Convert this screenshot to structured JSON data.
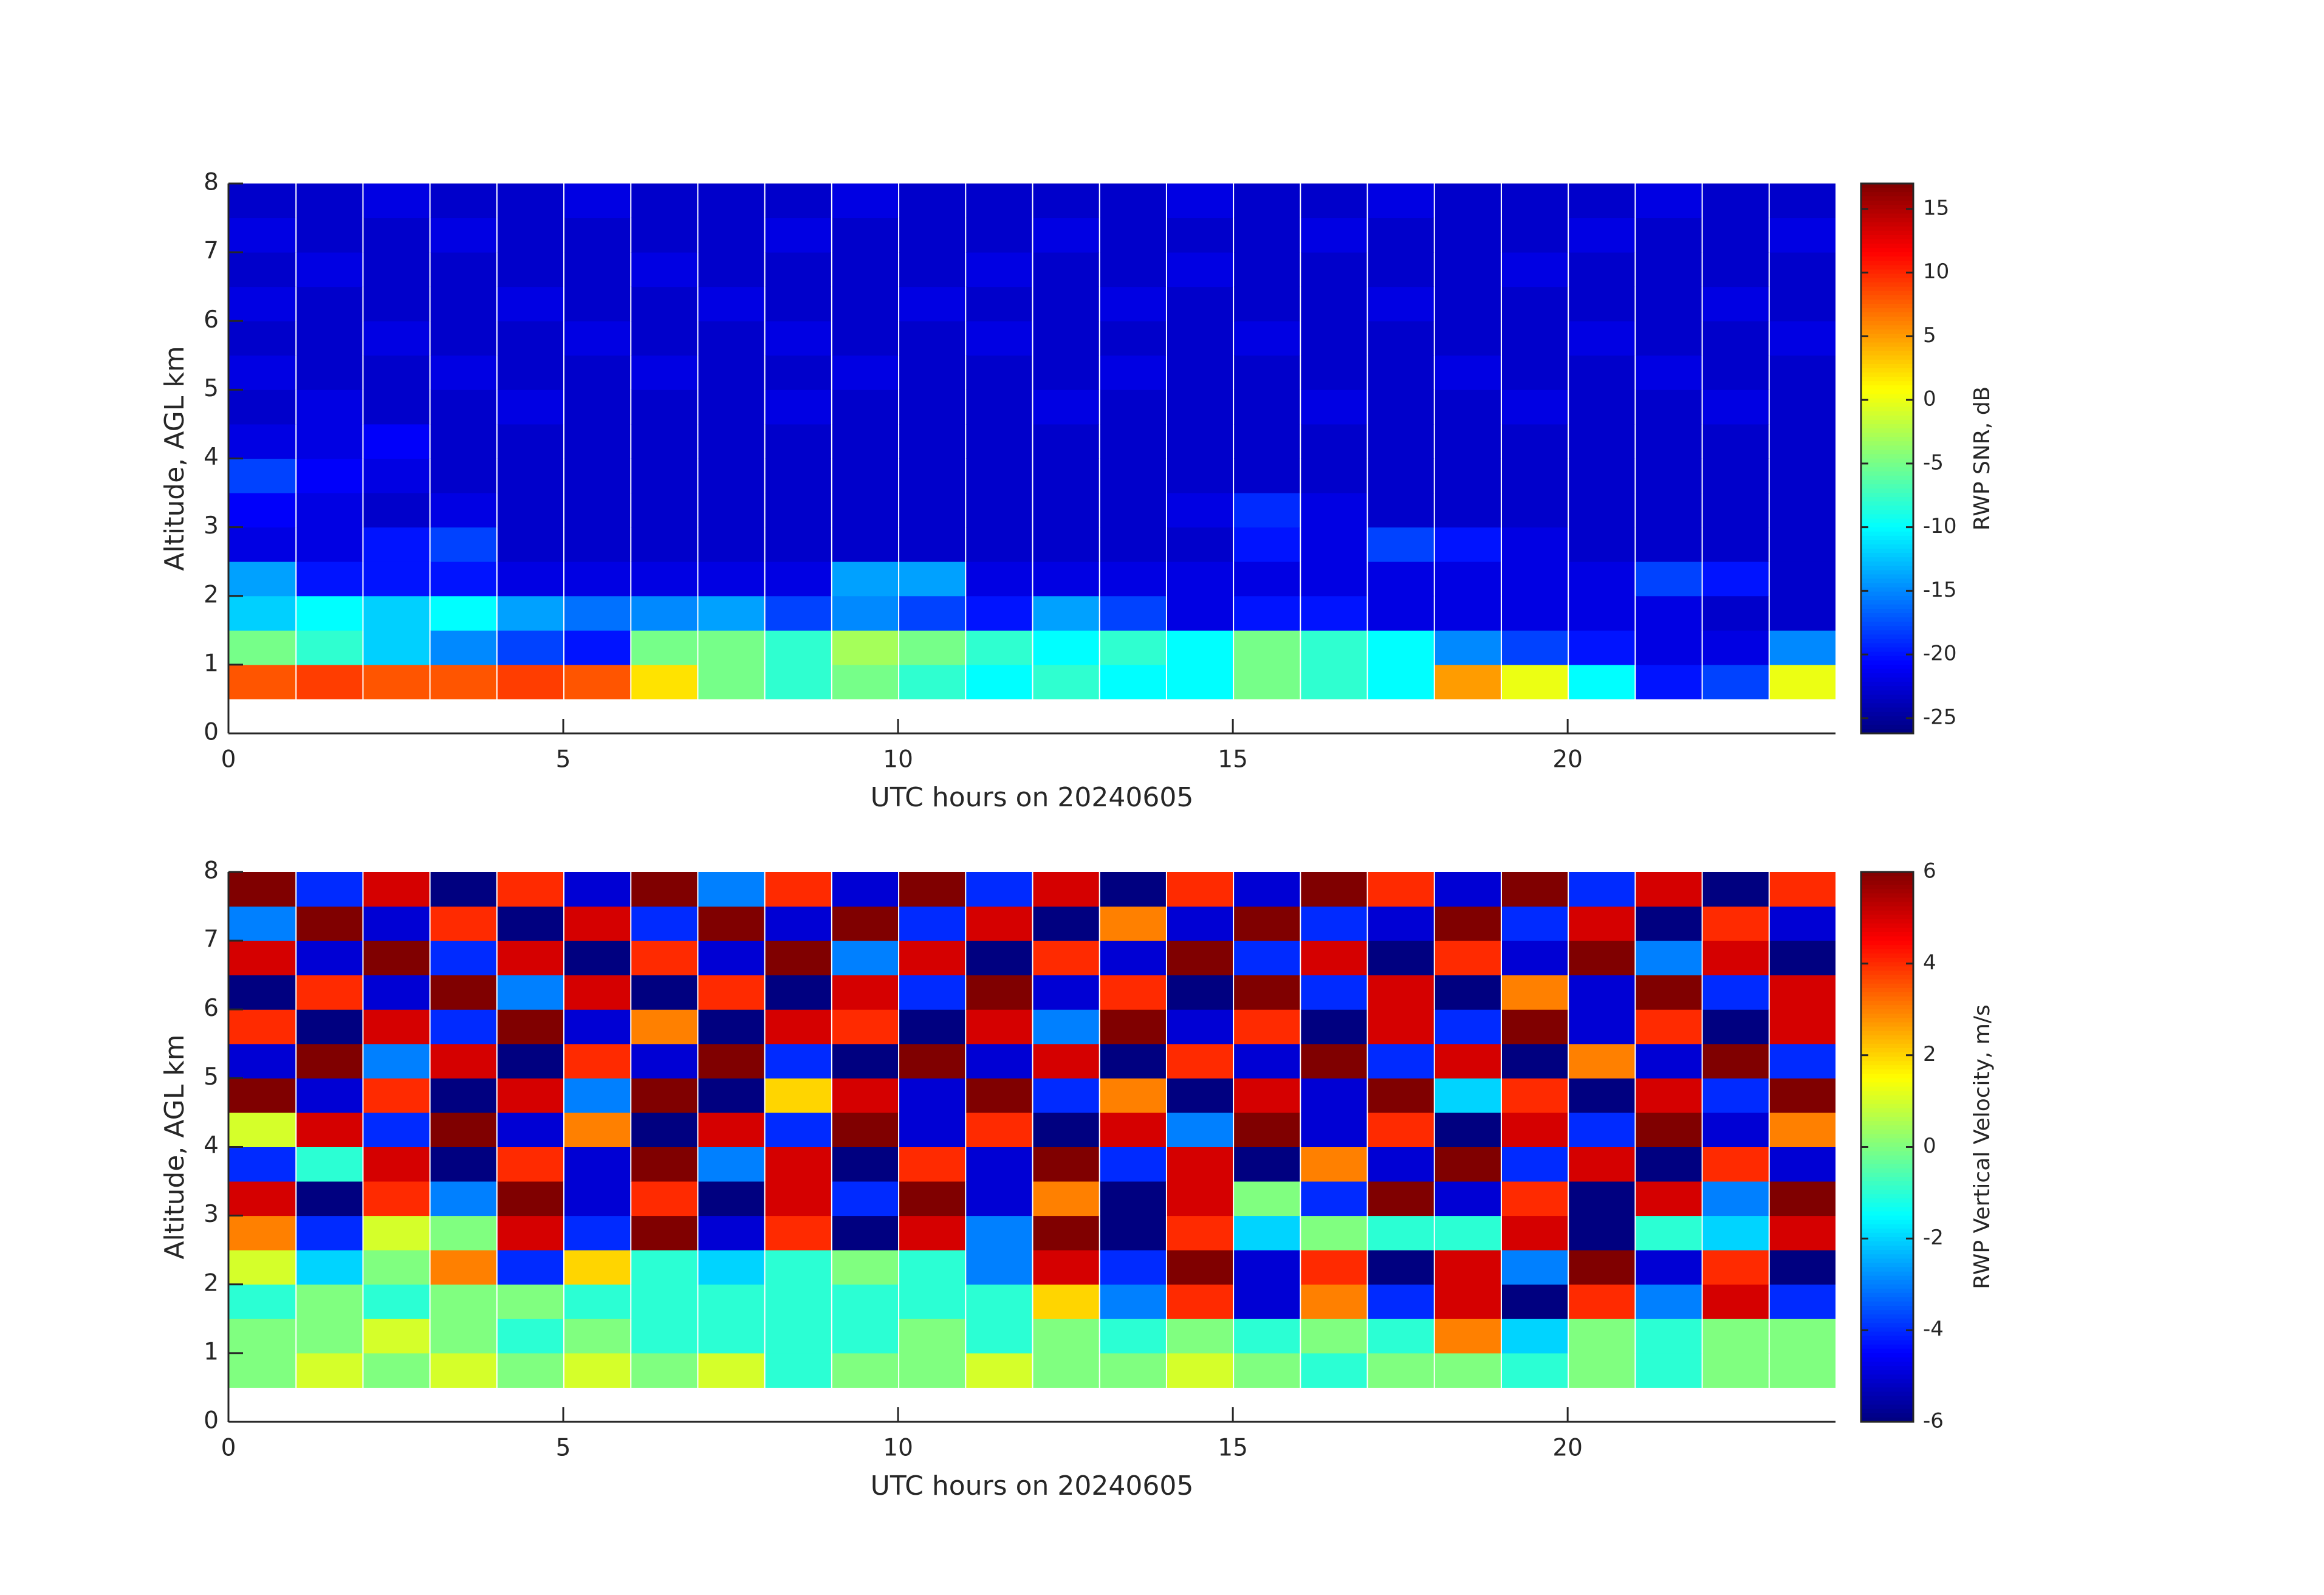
{
  "chart_data": [
    {
      "type": "heatmap",
      "colormap": "jet",
      "x": [
        0,
        1,
        2,
        3,
        4,
        5,
        6,
        7,
        8,
        9,
        10,
        11,
        12,
        13,
        14,
        15,
        16,
        17,
        18,
        19,
        20,
        21,
        22,
        23,
        24
      ],
      "y": [
        0.5,
        1,
        1.5,
        2,
        2.5,
        3,
        3.5,
        4,
        4.5,
        5,
        5.5,
        6,
        6.5,
        7,
        7.5,
        8
      ],
      "values": [
        [
          8,
          9,
          8,
          8,
          9,
          8,
          2,
          -5,
          -8,
          -5,
          -8,
          -10,
          -8,
          -10,
          -10,
          -5,
          -8,
          -10,
          5,
          0,
          -10,
          -20,
          -18,
          0
        ],
        [
          -5,
          -8,
          -12,
          -15,
          -18,
          -20,
          -5,
          -5,
          -8,
          -3,
          -5,
          -8,
          -10,
          -8,
          -10,
          -5,
          -8,
          -10,
          -15,
          -18,
          -20,
          -22,
          -22,
          -15
        ],
        [
          -12,
          -10,
          -12,
          -10,
          -14,
          -16,
          -15,
          -14,
          -18,
          -15,
          -18,
          -20,
          -14,
          -18,
          -22,
          -20,
          -20,
          -22,
          -22,
          -22,
          -22,
          -22,
          -23,
          -23
        ],
        [
          -14,
          -20,
          -20,
          -20,
          -22,
          -22,
          -22,
          -22,
          -22,
          -14,
          -14,
          -22,
          -22,
          -22,
          -22,
          -22,
          -22,
          -22,
          -22,
          -22,
          -22,
          -18,
          -20,
          -23
        ],
        [
          -22,
          -22,
          -20,
          -18,
          -23,
          -23,
          -23,
          -23,
          -23,
          -23,
          -23,
          -23,
          -23,
          -23,
          -23,
          -20,
          -22,
          -18,
          -20,
          -22,
          -23,
          -23,
          -23,
          -23
        ],
        [
          -21,
          -22,
          -23,
          -22,
          -23,
          -23,
          -23,
          -23,
          -23,
          -23,
          -23,
          -23,
          -23,
          -23,
          -22,
          -19,
          -22,
          -23,
          -23,
          -23,
          -23,
          -23,
          -23,
          -23
        ],
        [
          -18,
          -21,
          -22,
          -23,
          -23,
          -23,
          -23,
          -23,
          -23,
          -23,
          -23,
          -23,
          -23,
          -23,
          -23,
          -23,
          -23,
          -23,
          -23,
          -23,
          -23,
          -23,
          -23,
          -23
        ],
        [
          -22,
          -22,
          -21,
          -23,
          -23,
          -23,
          -23,
          -23,
          -23,
          -23,
          -23,
          -23,
          -23,
          -23,
          -23,
          -23,
          -23,
          -23,
          -23,
          -23,
          -23,
          -23,
          -23,
          -23
        ],
        [
          -23,
          -22,
          -23,
          -23,
          -22,
          -23,
          -23,
          -23,
          -22,
          -23,
          -23,
          -23,
          -22,
          -23,
          -23,
          -23,
          -22,
          -23,
          -23,
          -22,
          -23,
          -23,
          -22,
          -23
        ],
        [
          -22,
          -23,
          -23,
          -22,
          -23,
          -23,
          -22,
          -23,
          -23,
          -22,
          -23,
          -23,
          -23,
          -22,
          -23,
          -23,
          -23,
          -23,
          -22,
          -23,
          -23,
          -22,
          -23,
          -23
        ],
        [
          -23,
          -23,
          -22,
          -23,
          -23,
          -22,
          -23,
          -23,
          -22,
          -23,
          -23,
          -22,
          -23,
          -23,
          -23,
          -22,
          -23,
          -23,
          -23,
          -23,
          -22,
          -23,
          -23,
          -22
        ],
        [
          -22,
          -23,
          -23,
          -23,
          -22,
          -23,
          -23,
          -22,
          -23,
          -23,
          -22,
          -23,
          -23,
          -22,
          -23,
          -23,
          -23,
          -22,
          -23,
          -23,
          -23,
          -23,
          -22,
          -23
        ],
        [
          -23,
          -22,
          -23,
          -23,
          -23,
          -23,
          -22,
          -23,
          -23,
          -23,
          -23,
          -22,
          -23,
          -23,
          -22,
          -23,
          -23,
          -23,
          -23,
          -22,
          -23,
          -23,
          -23,
          -23
        ],
        [
          -22,
          -23,
          -23,
          -22,
          -23,
          -23,
          -23,
          -23,
          -22,
          -23,
          -23,
          -23,
          -22,
          -23,
          -23,
          -23,
          -22,
          -23,
          -23,
          -23,
          -22,
          -23,
          -23,
          -22
        ],
        [
          -23,
          -23,
          -22,
          -23,
          -23,
          -22,
          -23,
          -23,
          -23,
          -22,
          -23,
          -23,
          -23,
          -23,
          -22,
          -23,
          -23,
          -22,
          -23,
          -23,
          -23,
          -22,
          -23,
          -23
        ]
      ],
      "xlim": [
        0,
        24
      ],
      "xticks": [
        0,
        5,
        10,
        15,
        20
      ],
      "ylim": [
        0,
        8
      ],
      "yticks": [
        0,
        1,
        2,
        3,
        4,
        5,
        6,
        7,
        8
      ],
      "clim": [
        -26.2,
        17
      ],
      "cticks": [
        -25,
        -20,
        -15,
        -10,
        -5,
        0,
        5,
        10,
        15
      ],
      "xlabel": "UTC hours on 20240605",
      "ylabel": "Altitude, AGL km",
      "clabel": "RWP SNR, dB"
    },
    {
      "type": "heatmap",
      "colormap": "jet",
      "x": [
        0,
        1,
        2,
        3,
        4,
        5,
        6,
        7,
        8,
        9,
        10,
        11,
        12,
        13,
        14,
        15,
        16,
        17,
        18,
        19,
        20,
        21,
        22,
        23,
        24
      ],
      "y": [
        0.5,
        1,
        1.5,
        2,
        2.5,
        3,
        3.5,
        4,
        4.5,
        5,
        5.5,
        6,
        6.5,
        7,
        7.5,
        8
      ],
      "values": [
        [
          0,
          1,
          0,
          1,
          0,
          1,
          0,
          1,
          -1,
          0,
          0,
          1,
          0,
          0,
          1,
          0,
          -1,
          0,
          0,
          -1,
          0,
          -1,
          0,
          0
        ],
        [
          0,
          0,
          1,
          0,
          -1,
          0,
          -1,
          -1,
          -1,
          -1,
          0,
          -1,
          0,
          -1,
          0,
          -1,
          0,
          -1,
          3,
          -2,
          0,
          -1,
          0,
          0
        ],
        [
          -1,
          0,
          -1,
          0,
          0,
          -1,
          -1,
          -1,
          -1,
          -1,
          -1,
          -1,
          2,
          -3,
          4,
          -5,
          3,
          -4,
          5,
          -6,
          4,
          -3,
          5,
          -4
        ],
        [
          1,
          -2,
          0,
          3,
          -4,
          2,
          -1,
          -2,
          -1,
          0,
          -1,
          -3,
          5,
          -4,
          6,
          -5,
          4,
          -6,
          5,
          -3,
          6,
          -5,
          4,
          -6
        ],
        [
          3,
          -4,
          1,
          0,
          5,
          -4,
          6,
          -5,
          4,
          -6,
          5,
          -3,
          6,
          -6,
          4,
          -2,
          0,
          -1,
          -1,
          5,
          -6,
          -1,
          -2,
          5
        ],
        [
          5,
          -6,
          4,
          -3,
          6,
          -5,
          4,
          -6,
          5,
          -4,
          6,
          -5,
          3,
          -6,
          5,
          0,
          -4,
          6,
          -5,
          4,
          -6,
          5,
          -3,
          6
        ],
        [
          -4,
          -1,
          5,
          -6,
          4,
          -5,
          6,
          -3,
          5,
          -6,
          4,
          -5,
          6,
          -4,
          5,
          -6,
          3,
          -5,
          6,
          -4,
          5,
          -6,
          4,
          -5
        ],
        [
          1,
          5,
          -4,
          6,
          -5,
          3,
          -6,
          5,
          -4,
          6,
          -5,
          4,
          -6,
          5,
          -3,
          6,
          -5,
          4,
          -6,
          5,
          -4,
          6,
          -5,
          3
        ],
        [
          6,
          -5,
          4,
          -6,
          5,
          -3,
          6,
          -6,
          2,
          5,
          -5,
          6,
          -4,
          3,
          -6,
          5,
          -5,
          6,
          -2,
          4,
          -6,
          5,
          -4,
          6
        ],
        [
          -5,
          6,
          -3,
          5,
          -6,
          4,
          -5,
          6,
          -4,
          -6,
          6,
          -5,
          5,
          -6,
          4,
          -5,
          6,
          -4,
          5,
          -6,
          3,
          -5,
          6,
          -4
        ],
        [
          4,
          -6,
          5,
          -4,
          6,
          -5,
          3,
          -6,
          5,
          4,
          -6,
          5,
          -3,
          6,
          -5,
          4,
          -6,
          5,
          -4,
          6,
          -5,
          4,
          -6,
          5
        ],
        [
          -6,
          4,
          -5,
          6,
          -3,
          5,
          -6,
          4,
          -6,
          5,
          -4,
          6,
          -5,
          4,
          -6,
          6,
          -4,
          5,
          -6,
          3,
          -5,
          6,
          -4,
          5
        ],
        [
          5,
          -5,
          6,
          -4,
          5,
          -6,
          4,
          -5,
          6,
          -3,
          5,
          -6,
          4,
          -5,
          6,
          -4,
          5,
          -6,
          4,
          -5,
          6,
          -3,
          5,
          -6
        ],
        [
          -3,
          6,
          -5,
          4,
          -6,
          5,
          -4,
          6,
          -5,
          6,
          -4,
          5,
          -6,
          3,
          -5,
          6,
          -4,
          -5,
          6,
          -4,
          5,
          -6,
          4,
          -5
        ],
        [
          6,
          -4,
          5,
          -6,
          4,
          -5,
          6,
          -3,
          4,
          -5,
          6,
          -4,
          5,
          -6,
          4,
          -5,
          6,
          4,
          -5,
          6,
          -4,
          5,
          -6,
          4
        ]
      ],
      "xlim": [
        0,
        24
      ],
      "xticks": [
        0,
        5,
        10,
        15,
        20
      ],
      "ylim": [
        0,
        8
      ],
      "yticks": [
        0,
        1,
        2,
        3,
        4,
        5,
        6,
        7,
        8
      ],
      "clim": [
        -6,
        6
      ],
      "cticks": [
        -6,
        -4,
        -2,
        0,
        2,
        4,
        6
      ],
      "xlabel": "UTC hours on 20240605",
      "ylabel": "Altitude, AGL km",
      "clabel": "RWP Vertical Velocity, m/s"
    }
  ]
}
